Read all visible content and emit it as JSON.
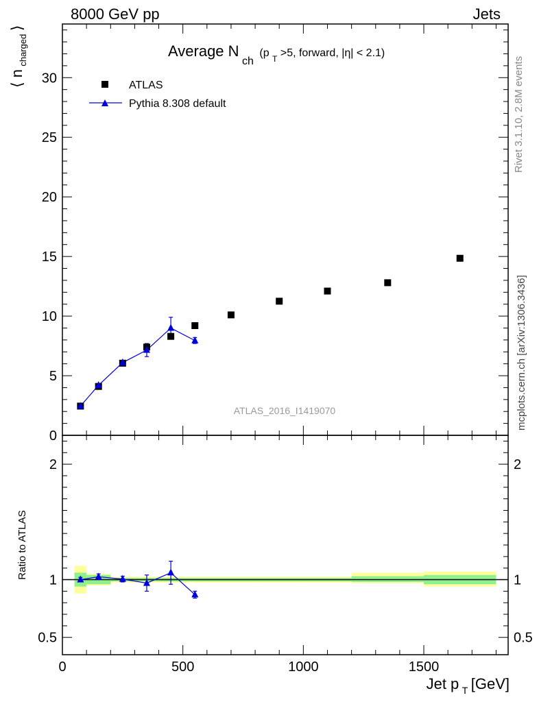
{
  "header": {
    "left": "8000 GeV pp",
    "right": "Jets"
  },
  "side_labels": {
    "rivet": "Rivet 3.1.10,  2.8M events",
    "mcplots": "mcplots.cern.ch [arXiv:1306.3436]"
  },
  "analysis_label": "ATLAS_2016_I1419070",
  "chart_data": [
    {
      "type": "scatter",
      "title_main": "Average N",
      "title_sub": "ch",
      "title_rest": "(p",
      "title_rest_sub": "T",
      "title_tail": ">5, forward, |η| < 2.1)",
      "ylabel_pre": "⟨ n",
      "ylabel_sub": "charged",
      "ylabel_post": "⟩",
      "xlim": [
        0,
        1850
      ],
      "ylim": [
        0,
        34.5
      ],
      "yticks": [
        0,
        5,
        10,
        15,
        20,
        25,
        30
      ],
      "yticklabels": [
        "0",
        "5",
        "10",
        "15",
        "20",
        "25",
        "30"
      ],
      "xticks": [
        0,
        500,
        1000,
        1500
      ],
      "legend_position": "top-left",
      "series": [
        {
          "name": "ATLAS",
          "marker": "square",
          "color": "#000000",
          "x": [
            75,
            150,
            250,
            350,
            450,
            550,
            700,
            900,
            1100,
            1350,
            1650
          ],
          "y": [
            2.45,
            4.1,
            6.05,
            7.4,
            8.3,
            9.2,
            10.1,
            11.25,
            12.1,
            12.8,
            14.85
          ]
        },
        {
          "name": "Pythia 8.308 default",
          "marker": "triangle",
          "color": "#0000dd",
          "x": [
            75,
            150,
            250,
            350,
            450,
            550
          ],
          "y": [
            2.45,
            4.2,
            6.1,
            7.15,
            9.0,
            7.95
          ],
          "yerr": [
            0.05,
            0.1,
            0.15,
            0.55,
            0.9,
            0.25
          ]
        }
      ]
    },
    {
      "type": "scatter",
      "ylabel": "Ratio to ATLAS",
      "xlabel_pre": "Jet p",
      "xlabel_sub": "T",
      "xlabel_post": " [GeV]",
      "xlim": [
        0,
        1850
      ],
      "ylim": [
        0.35,
        2.25
      ],
      "yticks": [
        0.5,
        1,
        2
      ],
      "yticklabels": [
        "0.5",
        "1",
        "2"
      ],
      "xticks": [
        0,
        500,
        1000,
        1500
      ],
      "xticklabels": [
        "0",
        "500",
        "1000",
        "1500"
      ],
      "reference_line": 1,
      "bands": [
        {
          "x0": 50,
          "x1": 100,
          "inner": [
            0.94,
            1.06
          ],
          "outer": [
            0.88,
            1.12
          ]
        },
        {
          "x0": 100,
          "x1": 200,
          "inner": [
            0.96,
            1.04
          ],
          "outer": [
            0.95,
            1.05
          ]
        },
        {
          "x0": 200,
          "x1": 300,
          "inner": [
            0.985,
            1.015
          ],
          "outer": [
            0.975,
            1.025
          ]
        },
        {
          "x0": 300,
          "x1": 400,
          "inner": [
            0.985,
            1.015
          ],
          "outer": [
            0.975,
            1.025
          ]
        },
        {
          "x0": 400,
          "x1": 500,
          "inner": [
            0.985,
            1.015
          ],
          "outer": [
            0.975,
            1.025
          ]
        },
        {
          "x0": 500,
          "x1": 600,
          "inner": [
            0.985,
            1.015
          ],
          "outer": [
            0.975,
            1.025
          ]
        },
        {
          "x0": 600,
          "x1": 800,
          "inner": [
            0.985,
            1.015
          ],
          "outer": [
            0.975,
            1.025
          ]
        },
        {
          "x0": 800,
          "x1": 1000,
          "inner": [
            0.985,
            1.015
          ],
          "outer": [
            0.975,
            1.025
          ]
        },
        {
          "x0": 1000,
          "x1": 1200,
          "inner": [
            0.985,
            1.015
          ],
          "outer": [
            0.975,
            1.025
          ]
        },
        {
          "x0": 1200,
          "x1": 1500,
          "inner": [
            0.98,
            1.03
          ],
          "outer": [
            0.97,
            1.06
          ]
        },
        {
          "x0": 1500,
          "x1": 1800,
          "inner": [
            0.96,
            1.04
          ],
          "outer": [
            0.94,
            1.07
          ]
        }
      ],
      "band_colors": {
        "inner": "#8ef08e",
        "outer": "#ffff99"
      },
      "series": [
        {
          "name": "Pythia 8.308 default",
          "marker": "triangle",
          "color": "#0000dd",
          "x": [
            75,
            150,
            250,
            350,
            450,
            550
          ],
          "y": [
            1.0,
            1.025,
            1.005,
            0.97,
            1.06,
            0.87
          ],
          "yerr": [
            0.02,
            0.025,
            0.025,
            0.07,
            0.1,
            0.03
          ]
        }
      ]
    }
  ]
}
